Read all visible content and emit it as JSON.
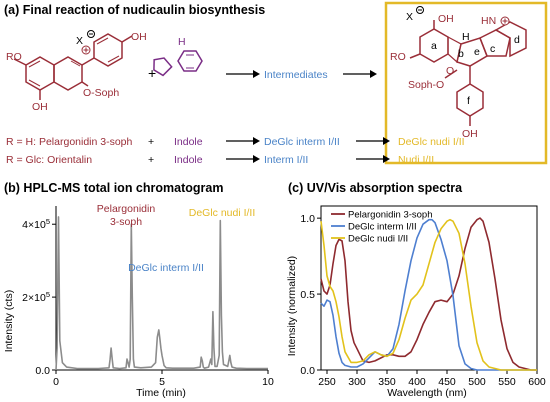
{
  "colors": {
    "maroon": "#9a2e38",
    "purple": "#7a2d86",
    "blue": "#4a83c7",
    "gold": "#e3b928",
    "gray": "#7f7f7f",
    "chrom_line": "#8c8c8c",
    "pelargonidin": "#8e2a2f",
    "deglc_interm": "#4e7fd0",
    "deglc_nudi": "#e2c21b"
  },
  "panel_a": {
    "title": "(a)  Final reaction of nudicaulin biosynthesis",
    "plus": "+",
    "intermediates": "Intermediates",
    "structure_labels": {
      "x_minus": "X",
      "oh1": "OH",
      "oh2": "OH",
      "osoph": "O-Soph",
      "ro1": "RO",
      "ro2": "RO",
      "oh_nudi_top": "OH",
      "hn": "HN",
      "soph_o": "Soph-O",
      "oh_nudi_bottom": "OH",
      "h": "H",
      "ring_a": "a",
      "ring_b": "b",
      "ring_c": "c",
      "ring_d": "d",
      "ring_e": "e",
      "ring_f": "f",
      "o_ring": "O"
    },
    "rows": [
      {
        "r": "R = H: Pelargonidin 3-soph",
        "plus": "+",
        "indole": "Indole",
        "interm": "DeGlc interm I/II",
        "product": "DeGlc nudi I/II"
      },
      {
        "r": "R = Glc: Orientalin",
        "plus": "+",
        "indole": "Indole",
        "interm": "Interm I/II",
        "product": "Nudi I/II"
      }
    ]
  },
  "panel_b": {
    "title": "(b)  HPLC-MS total ion chromatogram",
    "ylabel": "Intensity (cts)",
    "xlabel": "Time (min)",
    "annotations": {
      "pelargonidin_l1": "Pelargonidin",
      "pelargonidin_l2": "3-soph",
      "deglc_interm": "DeGlc interm I/II",
      "deglc_nudi": "DeGlc nudi I/II"
    },
    "yticks": [
      {
        "v": 0,
        "base": "0.0",
        "exp": ""
      },
      {
        "v": 200000,
        "base": "2×10",
        "exp": "5"
      },
      {
        "v": 400000,
        "base": "4×10",
        "exp": "5"
      }
    ]
  },
  "panel_c": {
    "title": "(c)  UV/Vis absorption spectra",
    "ylabel": "Intensity (normalized)",
    "xlabel": "Wavelength (nm)"
  },
  "chart_data": [
    {
      "type": "line",
      "title": "HPLC-MS total ion chromatogram",
      "xlabel": "Time (min)",
      "ylabel": "Intensity (cts)",
      "xlim": [
        0,
        10
      ],
      "ylim": [
        0,
        450000
      ],
      "xticks": [
        0,
        5,
        10
      ],
      "series": [
        {
          "name": "",
          "x": [
            0.0,
            0.05,
            0.12,
            0.18,
            0.3,
            0.5,
            1.0,
            1.5,
            2.0,
            2.5,
            2.55,
            2.6,
            2.65,
            2.7,
            3.0,
            3.3,
            3.35,
            3.4,
            3.45,
            3.5,
            3.55,
            3.6,
            3.65,
            3.7,
            4.0,
            4.5,
            4.7,
            4.78,
            4.85,
            4.9,
            4.95,
            5.0,
            5.1,
            5.2,
            5.5,
            6.0,
            6.5,
            6.8,
            6.85,
            6.9,
            6.95,
            7.0,
            7.2,
            7.3,
            7.35,
            7.4,
            7.45,
            7.5,
            7.6,
            7.7,
            7.75,
            7.8,
            7.85,
            7.9,
            8.1,
            8.15,
            8.2,
            8.25,
            8.3,
            8.5,
            9.0,
            9.5,
            10.0
          ],
          "y": [
            0,
            60000,
            420000,
            80000,
            20000,
            8000,
            4000,
            4000,
            4000,
            6000,
            30000,
            60000,
            30000,
            6000,
            4000,
            6000,
            30000,
            20000,
            8000,
            30000,
            400000,
            200000,
            30000,
            8000,
            6000,
            8000,
            20000,
            90000,
            110000,
            85000,
            60000,
            40000,
            12000,
            6000,
            5000,
            5000,
            5000,
            8000,
            35000,
            25000,
            8000,
            5000,
            8000,
            30000,
            15000,
            160000,
            60000,
            10000,
            10000,
            40000,
            410000,
            150000,
            50000,
            15000,
            10000,
            25000,
            40000,
            20000,
            8000,
            5000,
            4000,
            4000,
            4000
          ]
        }
      ],
      "annotations": [
        "Pelargonidin",
        "3-soph",
        "DeGlc interm I/II",
        "DeGlc nudi I/II"
      ]
    },
    {
      "type": "line",
      "title": "UV/Vis absorption spectra",
      "xlabel": "Wavelength (nm)",
      "ylabel": "Intensity (normalized)",
      "xlim": [
        240,
        600
      ],
      "ylim": [
        0,
        1.08
      ],
      "xticks": [
        250,
        300,
        350,
        400,
        450,
        500,
        550,
        600
      ],
      "yticks": [
        0.0,
        0.5,
        1.0
      ],
      "legend": "top-left",
      "series": [
        {
          "name": "Pelargonidin 3-soph",
          "x": [
            240,
            245,
            250,
            255,
            260,
            265,
            270,
            275,
            280,
            285,
            290,
            295,
            300,
            305,
            310,
            320,
            330,
            340,
            350,
            360,
            370,
            380,
            390,
            400,
            410,
            420,
            430,
            440,
            450,
            460,
            470,
            480,
            490,
            500,
            505,
            510,
            520,
            530,
            540,
            550,
            560,
            570,
            580,
            590,
            600
          ],
          "y": [
            0.6,
            0.52,
            0.5,
            0.56,
            0.7,
            0.82,
            0.86,
            0.85,
            0.72,
            0.45,
            0.26,
            0.18,
            0.14,
            0.1,
            0.06,
            0.05,
            0.06,
            0.08,
            0.1,
            0.1,
            0.09,
            0.09,
            0.12,
            0.2,
            0.3,
            0.38,
            0.45,
            0.46,
            0.45,
            0.5,
            0.62,
            0.8,
            0.94,
            0.99,
            1.0,
            0.98,
            0.84,
            0.6,
            0.33,
            0.14,
            0.05,
            0.02,
            0.01,
            0.0,
            0.0
          ]
        },
        {
          "name": "DeGlc interm I/II",
          "x": [
            240,
            245,
            250,
            255,
            260,
            265,
            270,
            275,
            280,
            290,
            300,
            310,
            320,
            330,
            340,
            350,
            360,
            370,
            380,
            390,
            400,
            410,
            420,
            425,
            430,
            440,
            450,
            460,
            470,
            480,
            490,
            500,
            520,
            550,
            600
          ],
          "y": [
            0.44,
            0.42,
            0.46,
            0.45,
            0.36,
            0.22,
            0.11,
            0.05,
            0.03,
            0.02,
            0.02,
            0.04,
            0.08,
            0.12,
            0.1,
            0.09,
            0.14,
            0.3,
            0.52,
            0.72,
            0.87,
            0.96,
            0.99,
            0.99,
            0.97,
            0.86,
            0.72,
            0.49,
            0.16,
            0.04,
            0.01,
            0.0,
            0.0,
            0.0,
            0.0
          ]
        },
        {
          "name": "DeGlc nudi I/II",
          "x": [
            240,
            245,
            250,
            255,
            260,
            265,
            270,
            275,
            280,
            290,
            300,
            310,
            320,
            330,
            340,
            350,
            360,
            370,
            380,
            390,
            400,
            410,
            420,
            430,
            440,
            450,
            455,
            460,
            470,
            480,
            490,
            500,
            510,
            520,
            540,
            560,
            600
          ],
          "y": [
            0.98,
            0.82,
            0.62,
            0.55,
            0.52,
            0.45,
            0.35,
            0.22,
            0.12,
            0.05,
            0.05,
            0.06,
            0.1,
            0.12,
            0.1,
            0.09,
            0.11,
            0.2,
            0.34,
            0.46,
            0.5,
            0.56,
            0.7,
            0.84,
            0.93,
            0.98,
            0.99,
            0.98,
            0.9,
            0.7,
            0.42,
            0.18,
            0.06,
            0.02,
            0.0,
            0.0,
            0.0
          ]
        }
      ]
    }
  ]
}
